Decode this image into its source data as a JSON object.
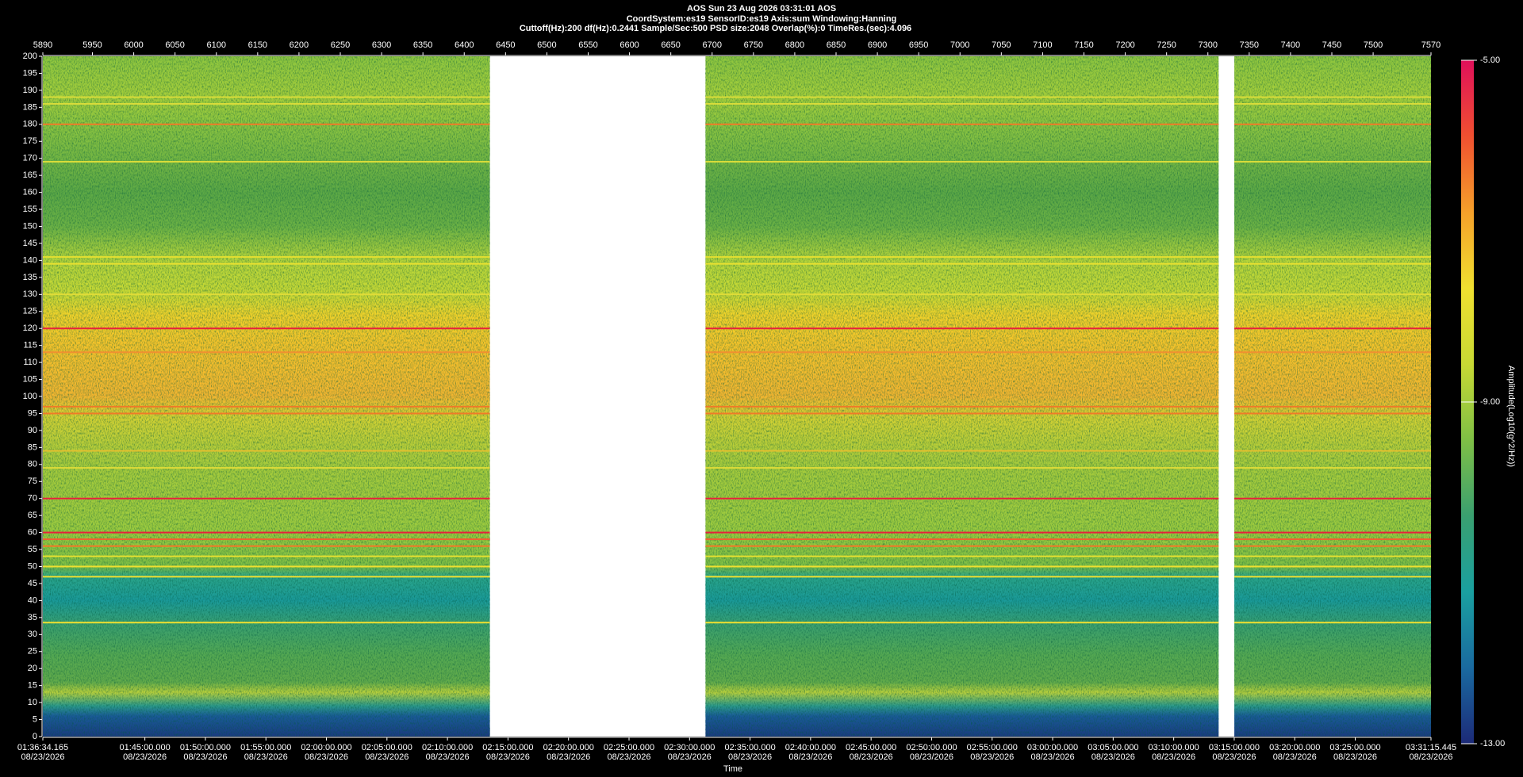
{
  "chart_data": {
    "type": "spectrogram",
    "header": [
      "AOS  Sun 23 Aug 2026 03:31:01  AOS",
      "CoordSystem:es19   SensorID:es19   Axis:sum   Windowing:Hanning",
      "Cuttoff(Hz):200   df(Hz):0.2441   Sample/Sec:500   PSD size:2048   Overlap(%):0   TimeRes.(sec):4.096"
    ],
    "x_label": "Time",
    "ylim": [
      0,
      200
    ],
    "yticks": [
      0,
      5,
      10,
      15,
      20,
      25,
      30,
      35,
      40,
      45,
      50,
      55,
      60,
      65,
      70,
      75,
      80,
      85,
      90,
      95,
      100,
      105,
      110,
      115,
      120,
      125,
      130,
      135,
      140,
      145,
      150,
      155,
      160,
      165,
      170,
      175,
      180,
      185,
      190,
      195,
      200
    ],
    "x2lim": [
      5890,
      7570
    ],
    "x2ticks": [
      5890,
      5950,
      6000,
      6050,
      6100,
      6150,
      6200,
      6250,
      6300,
      6350,
      6400,
      6450,
      6500,
      6550,
      6600,
      6650,
      6700,
      6750,
      6800,
      6850,
      6900,
      6950,
      7000,
      7050,
      7100,
      7150,
      7200,
      7250,
      7300,
      7350,
      7400,
      7450,
      7500,
      7570
    ],
    "xlim": [
      "2026-08-23T01:36:34.165",
      "2026-08-23T03:31:15.445"
    ],
    "xticks": [
      {
        "value": "2026-08-23T01:36:34.165",
        "label": "01:36:34.165",
        "date": "08/23/2026"
      },
      {
        "value": "2026-08-23T01:45:00.000",
        "label": "01:45:00.000",
        "date": "08/23/2026"
      },
      {
        "value": "2026-08-23T01:50:00.000",
        "label": "01:50:00.000",
        "date": "08/23/2026"
      },
      {
        "value": "2026-08-23T01:55:00.000",
        "label": "01:55:00.000",
        "date": "08/23/2026"
      },
      {
        "value": "2026-08-23T02:00:00.000",
        "label": "02:00:00.000",
        "date": "08/23/2026"
      },
      {
        "value": "2026-08-23T02:05:00.000",
        "label": "02:05:00.000",
        "date": "08/23/2026"
      },
      {
        "value": "2026-08-23T02:10:00.000",
        "label": "02:10:00.000",
        "date": "08/23/2026"
      },
      {
        "value": "2026-08-23T02:15:00.000",
        "label": "02:15:00.000",
        "date": "08/23/2026"
      },
      {
        "value": "2026-08-23T02:20:00.000",
        "label": "02:20:00.000",
        "date": "08/23/2026"
      },
      {
        "value": "2026-08-23T02:25:00.000",
        "label": "02:25:00.000",
        "date": "08/23/2026"
      },
      {
        "value": "2026-08-23T02:30:00.000",
        "label": "02:30:00.000",
        "date": "08/23/2026"
      },
      {
        "value": "2026-08-23T02:35:00.000",
        "label": "02:35:00.000",
        "date": "08/23/2026"
      },
      {
        "value": "2026-08-23T02:40:00.000",
        "label": "02:40:00.000",
        "date": "08/23/2026"
      },
      {
        "value": "2026-08-23T02:45:00.000",
        "label": "02:45:00.000",
        "date": "08/23/2026"
      },
      {
        "value": "2026-08-23T02:50:00.000",
        "label": "02:50:00.000",
        "date": "08/23/2026"
      },
      {
        "value": "2026-08-23T02:55:00.000",
        "label": "02:55:00.000",
        "date": "08/23/2026"
      },
      {
        "value": "2026-08-23T03:00:00.000",
        "label": "03:00:00.000",
        "date": "08/23/2026"
      },
      {
        "value": "2026-08-23T03:05:00.000",
        "label": "03:05:00.000",
        "date": "08/23/2026"
      },
      {
        "value": "2026-08-23T03:10:00.000",
        "label": "03:10:00.000",
        "date": "08/23/2026"
      },
      {
        "value": "2026-08-23T03:15:00.000",
        "label": "03:15:00.000",
        "date": "08/23/2026"
      },
      {
        "value": "2026-08-23T03:20:00.000",
        "label": "03:20:00.000",
        "date": "08/23/2026"
      },
      {
        "value": "2026-08-23T03:25:00.000",
        "label": "03:25:00.000",
        "date": "08/23/2026"
      },
      {
        "value": "2026-08-23T03:31:15.445",
        "label": "03:31:15.445",
        "date": "08/23/2026"
      }
    ],
    "segments": [
      [
        5890,
        6431
      ],
      [
        6692,
        7313
      ],
      [
        7332,
        7570
      ]
    ],
    "tones": {
      "values": [
        188,
        186,
        180,
        169,
        141,
        139,
        130,
        120,
        113,
        97,
        95,
        84,
        79,
        70,
        60,
        58,
        56,
        53,
        50,
        47,
        33.5
      ],
      "colors": [
        "#d8dc3a",
        "#d8dc3a",
        "#f07a28",
        "#d8dc3a",
        "#e6e030",
        "#e6e030",
        "#e0dc38",
        "#e8203c",
        "#f09030",
        "#f07a28",
        "#f07a28",
        "#e0c030",
        "#e0dc38",
        "#e8203c",
        "#e8203c",
        "#f06030",
        "#f07a28",
        "#e6e030",
        "#f0e030",
        "#f0e030",
        "#f0e030"
      ]
    },
    "colorbar": {
      "label": "Amplitude(Log10(g^2/Hz))",
      "clim": [
        -13,
        -5
      ],
      "ticks": [
        {
          "value": -5,
          "label": "-5.00"
        },
        {
          "value": -9,
          "label": "-9.00"
        },
        {
          "value": -13,
          "label": "-13.00"
        }
      ],
      "colormap": [
        "#1c2a78",
        "#1a6aa0",
        "#1aa0a0",
        "#3aa070",
        "#7fbf45",
        "#c8d934",
        "#f0e030",
        "#f5a02a",
        "#f05030",
        "#e0105a"
      ]
    }
  }
}
